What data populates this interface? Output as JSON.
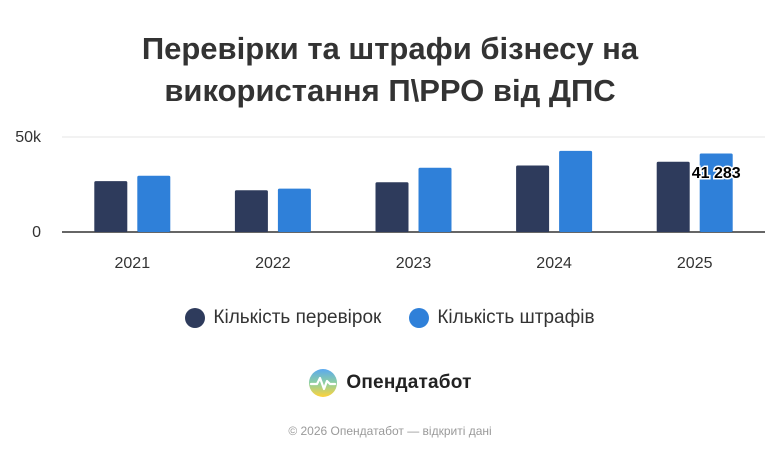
{
  "title_lines": [
    "Перевірки та штрафи бізнесу на",
    "використання П\\РРО від ДПС"
  ],
  "legend": {
    "inspections": "Кількість перевірок",
    "fines": "Кількість штрафів"
  },
  "brand": {
    "name": "Опендатабот",
    "logo": "opendatabot-logo-icon"
  },
  "footer": "© 2026 Опендатабот — відкриті дані",
  "colors": {
    "inspections": "#2e3b5c",
    "fines": "#2f80d9",
    "axis": "#333333",
    "grid": "#e6e6e6"
  },
  "chart_data": {
    "type": "bar",
    "title": "Перевірки та штрафи бізнесу на використання П\\РРО від ДПС",
    "categories": [
      "2021",
      "2022",
      "2023",
      "2024",
      "2025"
    ],
    "series": [
      {
        "name": "Кількість перевірок",
        "values": [
          26800,
          22000,
          26200,
          35000,
          37000
        ]
      },
      {
        "name": "Кількість штрафів",
        "values": [
          29600,
          22800,
          33800,
          42700,
          41283
        ]
      }
    ],
    "data_labels": [
      {
        "series": 1,
        "index": 4,
        "text": "41 283"
      }
    ],
    "ylim": [
      0,
      50000
    ],
    "yticks": [
      {
        "value": 0,
        "label": "0"
      },
      {
        "value": 50000,
        "label": "50k"
      }
    ],
    "grid": true,
    "legend_position": "bottom"
  }
}
